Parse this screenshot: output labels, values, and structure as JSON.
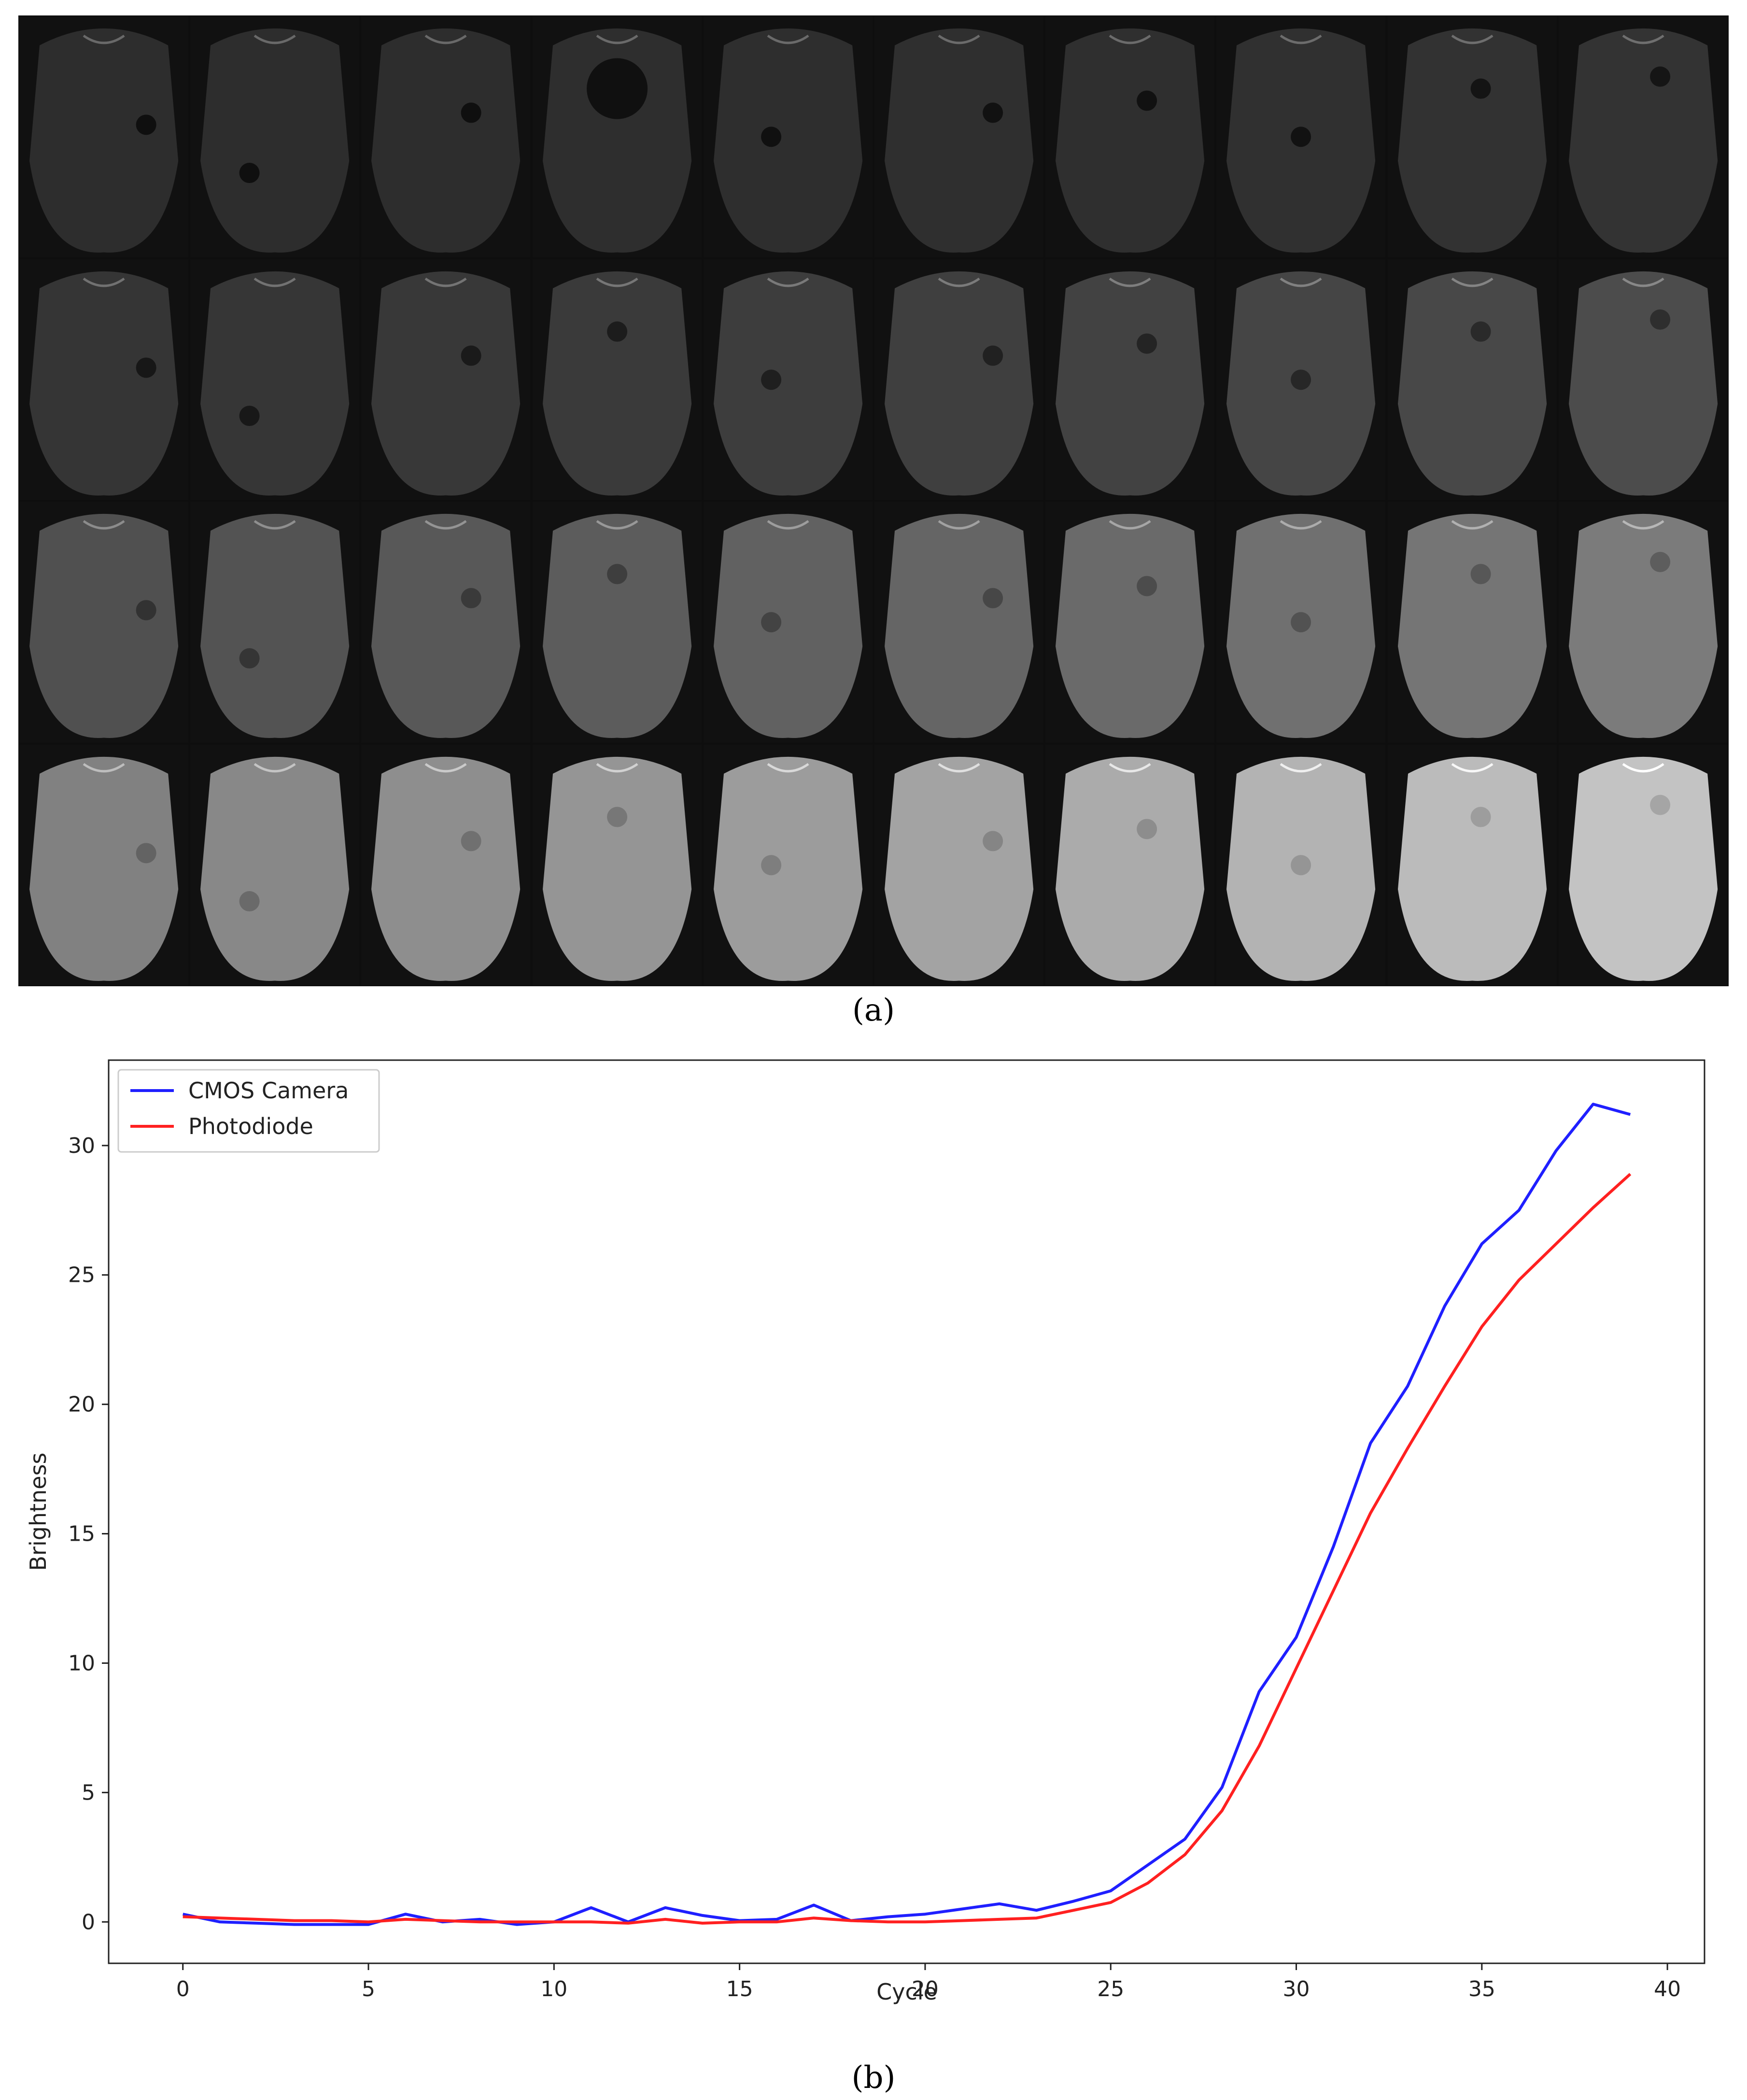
{
  "figure": {
    "panel_a_caption": "(a)",
    "panel_b_caption": "(b)",
    "image_grid": {
      "rows": 4,
      "cols": 10,
      "description_cycles": "0-39"
    }
  },
  "chart_data": {
    "type": "line",
    "title": "",
    "xlabel": "Cycle",
    "ylabel": "Brightness",
    "xlim": [
      -2,
      41
    ],
    "ylim": [
      -1.6,
      33.3
    ],
    "xticks": [
      0,
      5,
      10,
      15,
      20,
      25,
      30,
      35,
      40
    ],
    "yticks": [
      0,
      5,
      10,
      15,
      20,
      25,
      30
    ],
    "legend_position": "top-left",
    "x": [
      0,
      1,
      2,
      3,
      4,
      5,
      6,
      7,
      8,
      9,
      10,
      11,
      12,
      13,
      14,
      15,
      16,
      17,
      18,
      19,
      20,
      21,
      22,
      23,
      24,
      25,
      26,
      27,
      28,
      29,
      30,
      31,
      32,
      33,
      34,
      35,
      36,
      37,
      38,
      39
    ],
    "series": [
      {
        "name": "CMOS Camera",
        "color": "#1f1fff",
        "values": [
          0.3,
          0.0,
          -0.05,
          -0.1,
          -0.1,
          -0.1,
          0.3,
          0.0,
          0.1,
          -0.1,
          0.0,
          0.55,
          0.0,
          0.55,
          0.25,
          0.05,
          0.1,
          0.65,
          0.05,
          0.2,
          0.3,
          0.5,
          0.7,
          0.45,
          0.8,
          1.2,
          2.2,
          3.2,
          5.2,
          8.9,
          11.0,
          14.5,
          18.5,
          20.7,
          23.8,
          26.2,
          27.5,
          29.8,
          31.6,
          31.2
        ]
      },
      {
        "name": "Photodiode",
        "color": "#ff2020",
        "values": [
          0.2,
          0.15,
          0.1,
          0.05,
          0.05,
          0.0,
          0.1,
          0.05,
          0.0,
          0.0,
          0.0,
          0.0,
          -0.05,
          0.1,
          -0.05,
          0.0,
          0.0,
          0.15,
          0.05,
          0.0,
          0.0,
          0.05,
          0.1,
          0.15,
          0.45,
          0.75,
          1.5,
          2.6,
          4.3,
          6.8,
          9.8,
          12.8,
          15.8,
          18.3,
          20.7,
          23.0,
          24.8,
          26.2,
          27.6,
          28.9
        ]
      }
    ]
  }
}
